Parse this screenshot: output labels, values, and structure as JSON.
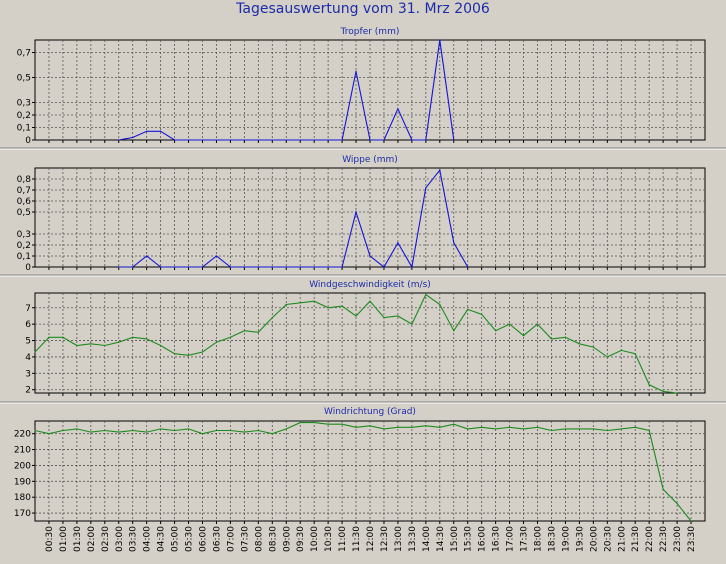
{
  "page": {
    "title": "Tagesauswertung vom 31. Mrz 2006"
  },
  "colors": {
    "background": "#d4d0c8",
    "plot_background": "#d4d0c8",
    "grid": "#555555",
    "title_text": "#1c2ca8",
    "blue_series": "#1414d6",
    "green_series": "#1d8a1d"
  },
  "chart_data": [
    {
      "type": "line",
      "title": "Tropfer (mm)",
      "series_color": "blue",
      "ylim": [
        0,
        0.8
      ],
      "yticks": [
        0,
        0.1,
        0.2,
        0.3,
        0.5,
        0.7
      ],
      "ytick_labels": [
        "0",
        "0,1",
        "0,2",
        "0,3",
        "0,5",
        "0,7"
      ],
      "grid": true,
      "x": [
        3.0,
        3.5,
        4.0,
        4.5,
        5.0,
        11.0,
        11.5,
        12.0,
        12.5,
        13.0,
        13.5,
        14.0,
        14.5,
        15.0
      ],
      "values": [
        0,
        0.02,
        0.07,
        0.07,
        0,
        0,
        0.55,
        0,
        0,
        0.25,
        0,
        0,
        0.8,
        0
      ]
    },
    {
      "type": "line",
      "title": "Wippe (mm)",
      "series_color": "blue",
      "ylim": [
        0,
        0.9
      ],
      "yticks": [
        0,
        0.1,
        0.2,
        0.3,
        0.5,
        0.6,
        0.7,
        0.8
      ],
      "ytick_labels": [
        "0",
        "0,1",
        "0,2",
        "0,3",
        "0,5",
        "0,6",
        "0,7",
        "0,8"
      ],
      "grid": true,
      "x": [
        3.0,
        3.5,
        4.0,
        4.5,
        6.0,
        6.5,
        7.0,
        11.0,
        11.5,
        12.0,
        12.5,
        13.0,
        13.5,
        14.0,
        14.5,
        15.0,
        15.5
      ],
      "values": [
        0,
        0,
        0.1,
        0,
        0,
        0.1,
        0,
        0,
        0.5,
        0.1,
        0,
        0.22,
        0,
        0.72,
        0.88,
        0.22,
        0
      ]
    },
    {
      "type": "line",
      "title": "Windgeschwindigkeit (m/s)",
      "series_color": "green",
      "ylim": [
        1.8,
        7.9
      ],
      "yticks": [
        2,
        3,
        4,
        5,
        6,
        7
      ],
      "ytick_labels": [
        "2",
        "3",
        "4",
        "5",
        "6",
        "7"
      ],
      "grid": true,
      "x": [
        0,
        0.5,
        1.0,
        1.5,
        2.0,
        2.5,
        3.0,
        3.5,
        4.0,
        4.5,
        5.0,
        5.5,
        6.0,
        6.5,
        7.0,
        7.5,
        8.0,
        8.5,
        9.0,
        9.5,
        10.0,
        10.5,
        11.0,
        11.5,
        12.0,
        12.5,
        13.0,
        13.5,
        14.0,
        14.5,
        15.0,
        15.5,
        16.0,
        16.5,
        17.0,
        17.5,
        18.0,
        18.5,
        19.0,
        19.5,
        20.0,
        20.5,
        21.0,
        21.5,
        22.0,
        22.5,
        23.0
      ],
      "values": [
        4.3,
        5.2,
        5.2,
        4.7,
        4.8,
        4.7,
        4.9,
        5.2,
        5.1,
        4.7,
        4.2,
        4.1,
        4.3,
        4.9,
        5.2,
        5.6,
        5.5,
        6.4,
        7.2,
        7.3,
        7.4,
        7.0,
        7.1,
        6.5,
        7.4,
        6.4,
        6.5,
        6.0,
        7.8,
        7.2,
        5.6,
        6.9,
        6.6,
        5.6,
        6.0,
        5.3,
        6.0,
        5.1,
        5.2,
        4.8,
        4.6,
        4.0,
        4.4,
        4.2,
        2.3,
        1.9,
        1.8
      ]
    },
    {
      "type": "line",
      "title": "Windrichtung (Grad)",
      "series_color": "green",
      "ylim": [
        165,
        228
      ],
      "yticks": [
        170,
        180,
        190,
        200,
        210,
        220
      ],
      "ytick_labels": [
        "170",
        "180",
        "190",
        "200",
        "210",
        "220"
      ],
      "grid": true,
      "x": [
        0,
        0.5,
        1.0,
        1.5,
        2.0,
        2.5,
        3.0,
        3.5,
        4.0,
        4.5,
        5.0,
        5.5,
        6.0,
        6.5,
        7.0,
        7.5,
        8.0,
        8.5,
        9.0,
        9.5,
        10.0,
        10.5,
        11.0,
        11.5,
        12.0,
        12.5,
        13.0,
        13.5,
        14.0,
        14.5,
        15.0,
        15.5,
        16.0,
        16.5,
        17.0,
        17.5,
        18.0,
        18.5,
        19.0,
        19.5,
        20.0,
        20.5,
        21.0,
        21.5,
        22.0,
        22.5,
        23.0,
        23.5
      ],
      "values": [
        222,
        220,
        222,
        223,
        221,
        222,
        221,
        222,
        221,
        223,
        222,
        223,
        220,
        222,
        222,
        221,
        222,
        220,
        223,
        227,
        227,
        226,
        226,
        224,
        225,
        223,
        224,
        224,
        225,
        224,
        226,
        223,
        224,
        223,
        224,
        223,
        224,
        222,
        223,
        223,
        223,
        222,
        223,
        224,
        222,
        185,
        176,
        165
      ]
    }
  ],
  "x_axis": {
    "xlim": [
      0,
      24
    ],
    "tick_labels": [
      "00:30",
      "01:00",
      "01:30",
      "02:00",
      "02:30",
      "03:00",
      "03:30",
      "04:00",
      "04:30",
      "05:00",
      "05:30",
      "06:00",
      "06:30",
      "07:00",
      "07:30",
      "08:00",
      "08:30",
      "09:00",
      "09:30",
      "10:00",
      "10:30",
      "11:00",
      "11:30",
      "12:00",
      "12:30",
      "13:00",
      "13:30",
      "14:00",
      "14:30",
      "15:00",
      "15:30",
      "16:00",
      "16:30",
      "17:00",
      "17:30",
      "18:00",
      "18:30",
      "19:00",
      "19:30",
      "20:00",
      "20:30",
      "21:00",
      "21:30",
      "22:00",
      "22:30",
      "23:00",
      "23:30"
    ]
  }
}
